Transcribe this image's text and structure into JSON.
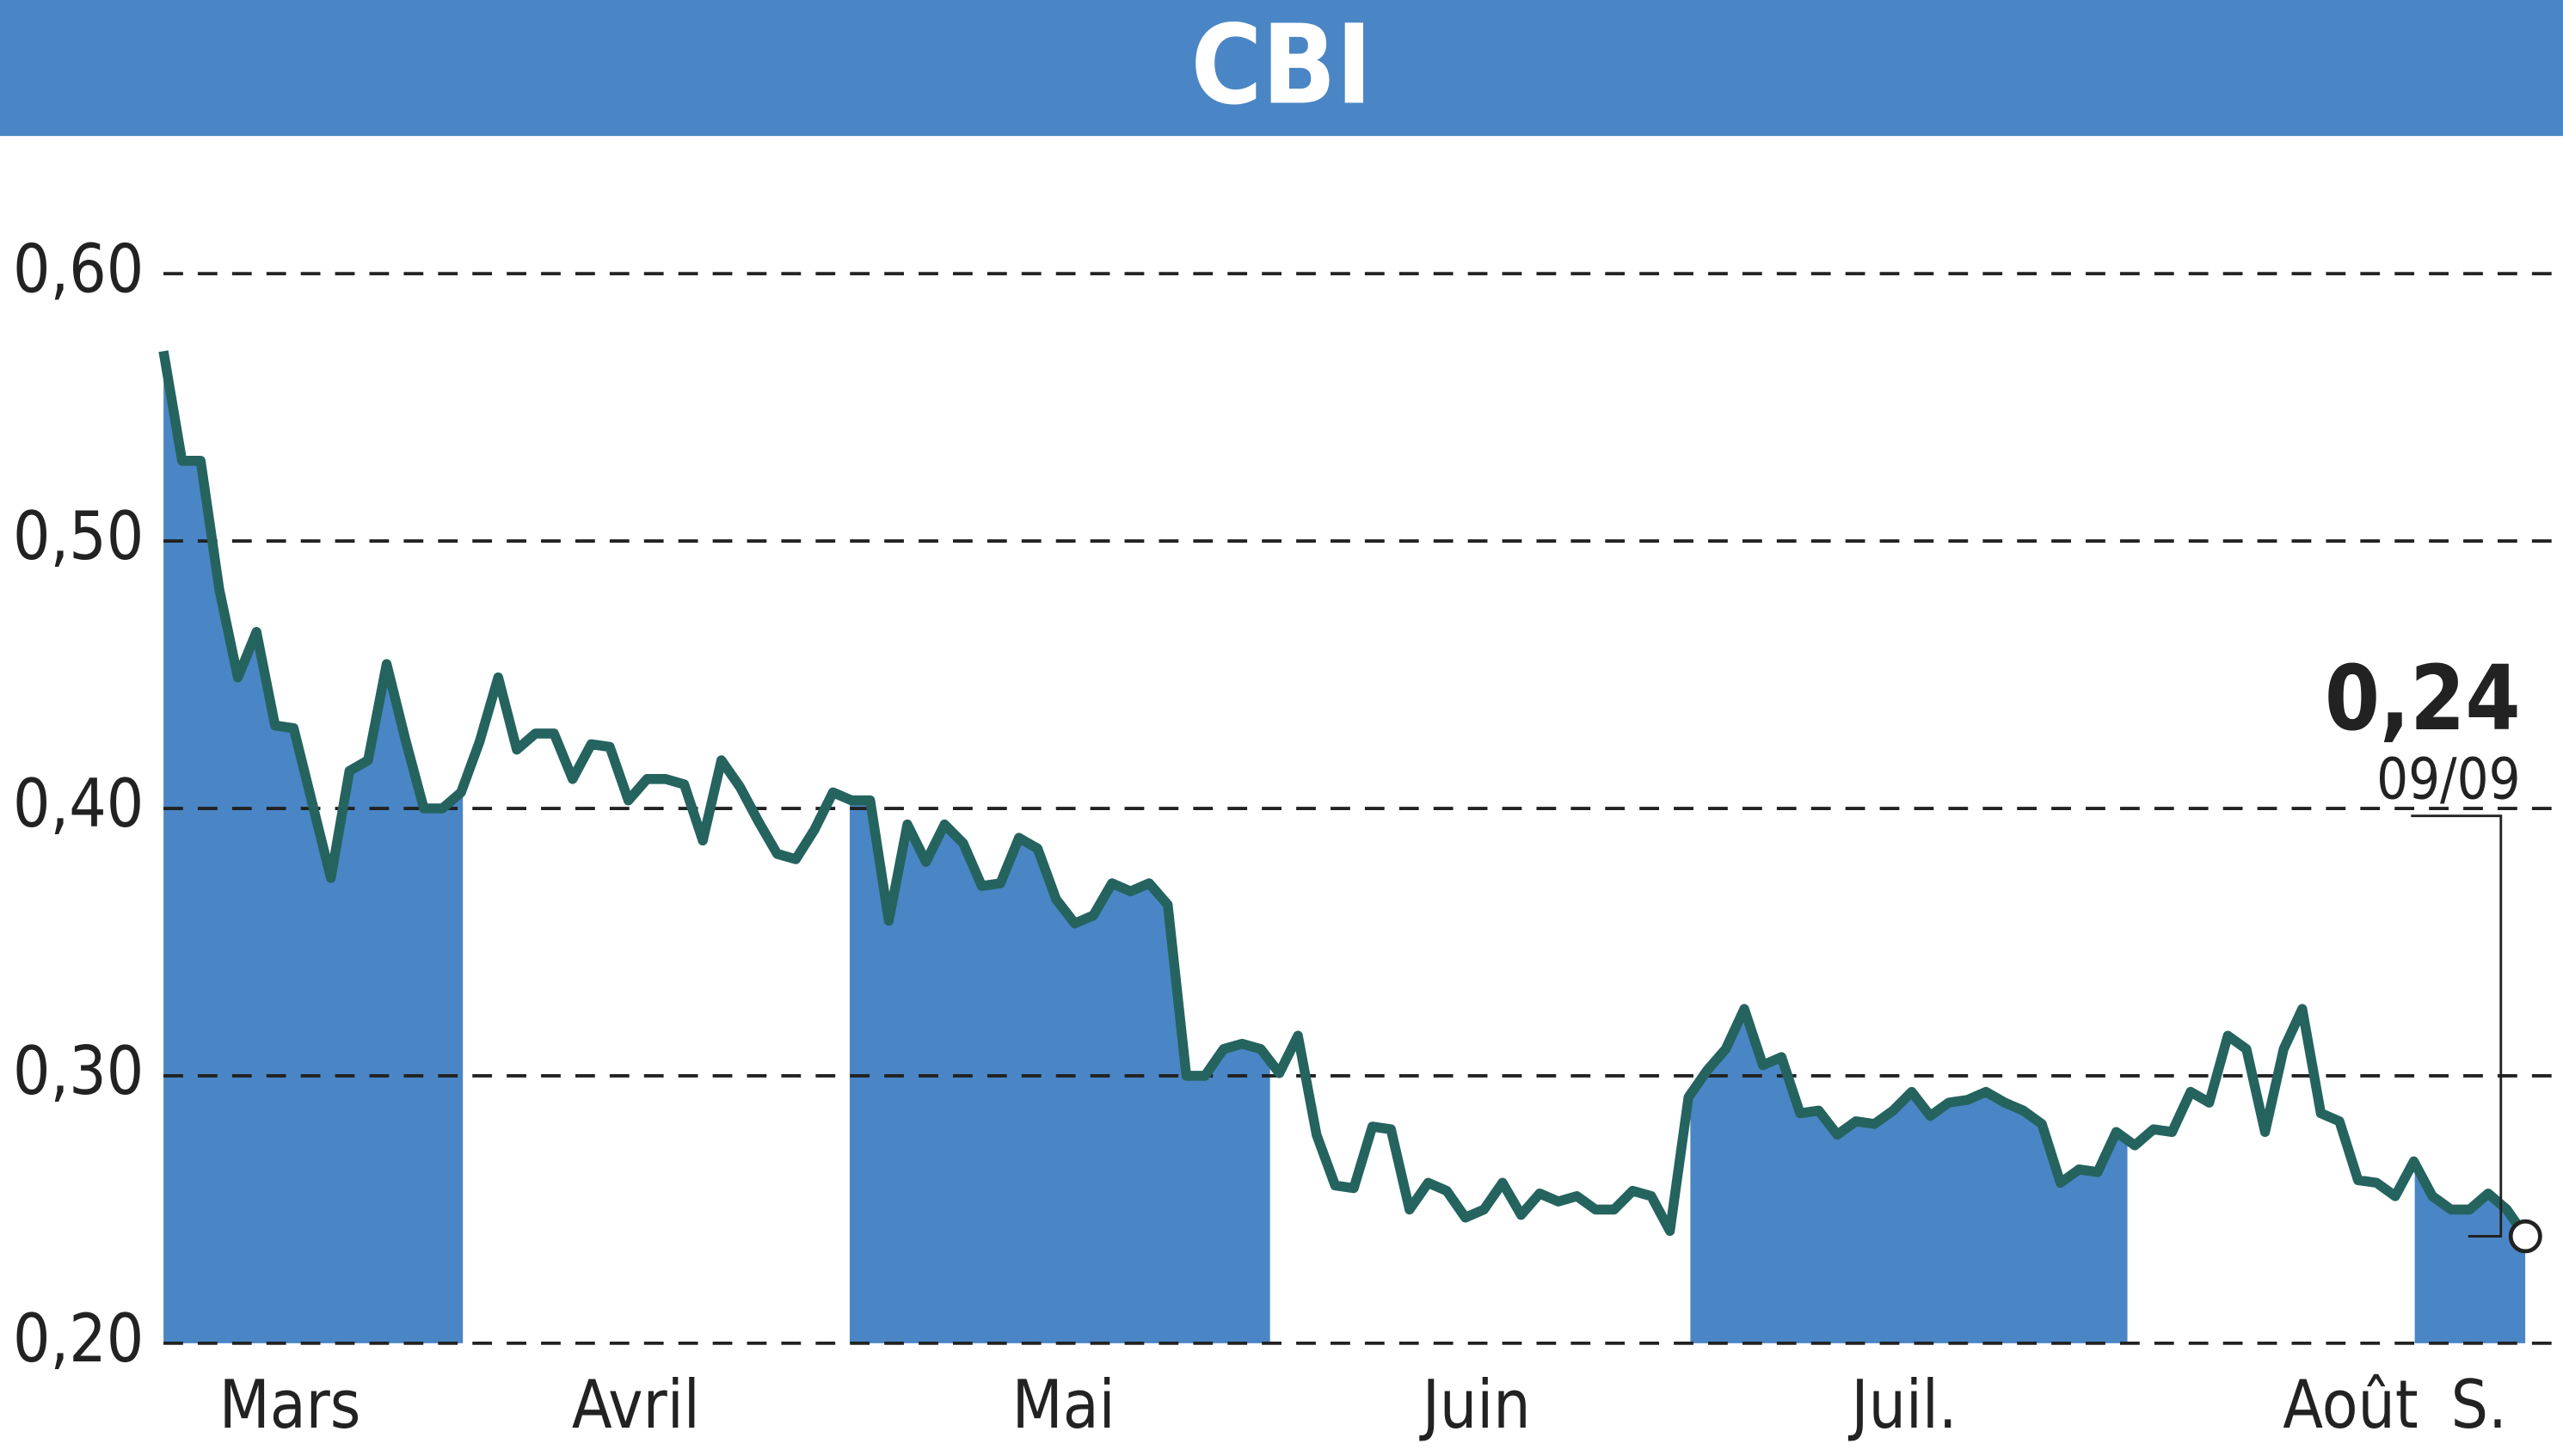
{
  "chart_data": {
    "type": "line",
    "title": "CBI",
    "values": [
      0.571,
      0.53,
      0.53,
      0.482,
      0.449,
      0.466,
      0.431,
      0.43,
      0.402,
      0.374,
      0.414,
      0.418,
      0.454,
      0.426,
      0.4,
      0.4,
      0.406,
      0.425,
      0.449,
      0.422,
      0.428,
      0.428,
      0.411,
      0.424,
      0.423,
      0.403,
      0.411,
      0.411,
      0.409,
      0.388,
      0.418,
      0.408,
      0.395,
      0.383,
      0.381,
      0.392,
      0.406,
      0.403,
      0.403,
      0.358,
      0.394,
      0.38,
      0.394,
      0.387,
      0.371,
      0.372,
      0.389,
      0.385,
      0.366,
      0.357,
      0.36,
      0.372,
      0.369,
      0.372,
      0.364,
      0.3,
      0.3,
      0.31,
      0.312,
      0.31,
      0.301,
      0.315,
      0.278,
      0.259,
      0.258,
      0.281,
      0.28,
      0.25,
      0.26,
      0.257,
      0.247,
      0.25,
      0.26,
      0.248,
      0.256,
      0.253,
      0.255,
      0.25,
      0.25,
      0.257,
      0.255,
      0.242,
      0.292,
      0.302,
      0.31,
      0.325,
      0.304,
      0.307,
      0.286,
      0.287,
      0.278,
      0.283,
      0.282,
      0.287,
      0.294,
      0.285,
      0.29,
      0.291,
      0.294,
      0.29,
      0.287,
      0.282,
      0.26,
      0.265,
      0.264,
      0.279,
      0.274,
      0.28,
      0.279,
      0.294,
      0.29,
      0.315,
      0.31,
      0.279,
      0.31,
      0.325,
      0.286,
      0.283,
      0.261,
      0.26,
      0.255,
      0.268,
      0.255,
      0.25,
      0.25,
      0.256,
      0.25,
      0.24
    ],
    "color": "#25635f",
    "fill_color": "#4a86c5",
    "xlim": [
      0,
      127
    ],
    "xticks": [
      {
        "value": 6.8,
        "label": "Mars"
      },
      {
        "value": 25.4,
        "label": "Avril"
      },
      {
        "value": 48.4,
        "label": "Mai"
      },
      {
        "value": 70.6,
        "label": "Juin"
      },
      {
        "value": 93.6,
        "label": "Juil."
      },
      {
        "value": 117.6,
        "label": "Août"
      },
      {
        "value": 124.5,
        "label": "S."
      }
    ],
    "ylim": [
      0.2,
      0.6
    ],
    "yticks": [
      {
        "value": 0.2,
        "label": "0,20"
      },
      {
        "value": 0.3,
        "label": "0,30"
      },
      {
        "value": 0.4,
        "label": "0,40"
      },
      {
        "value": 0.5,
        "label": "0,50"
      },
      {
        "value": 0.6,
        "label": "0,60"
      }
    ],
    "grid": true,
    "last_value_label": "0,24",
    "last_date": "09/09"
  }
}
